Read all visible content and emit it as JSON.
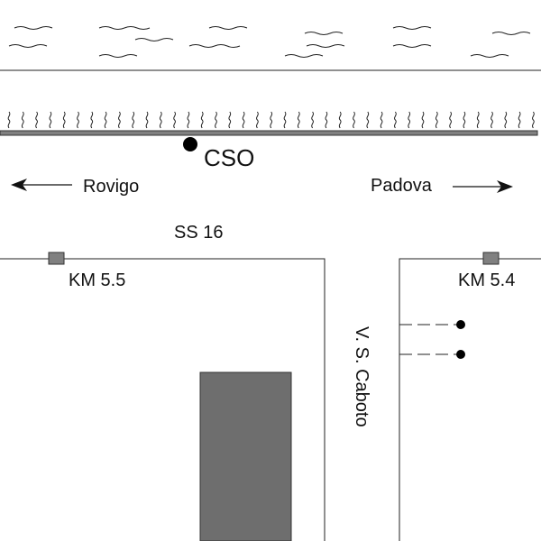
{
  "map": {
    "cso_label": "CSO",
    "left_direction": "Rovigo",
    "right_direction": "Padova",
    "road_name": "SS 16",
    "km_left": "KM 5.5",
    "km_right": "KM 5.4",
    "side_street": "V. S. Caboto"
  },
  "colors": {
    "line": "#222222",
    "marker": "#808080",
    "building": "#6e6e6e",
    "bank_line": "#808080"
  }
}
